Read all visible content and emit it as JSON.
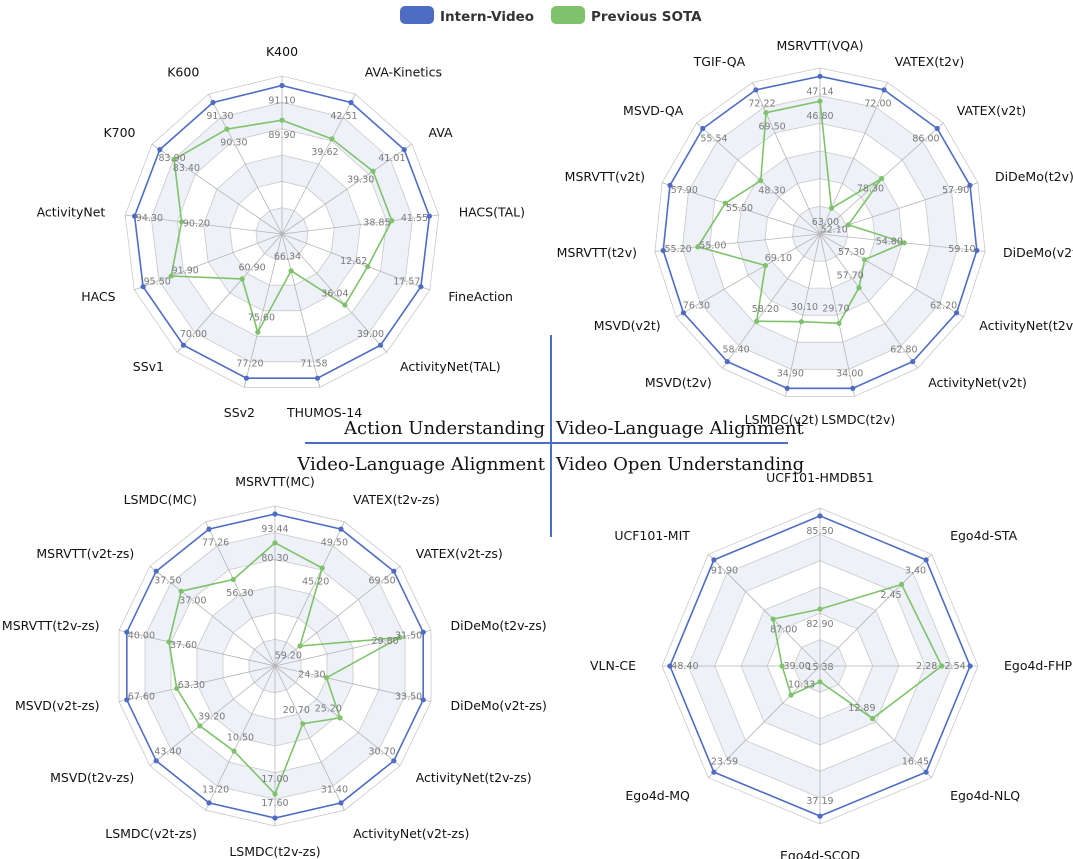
{
  "legend": {
    "items": [
      {
        "label": "Intern-Video",
        "color": "#4f6cc4"
      },
      {
        "label": "Previous SOTA",
        "color": "#7ec36b"
      }
    ]
  },
  "divider": {
    "top_left": "Action Understanding",
    "top_right": "Video-Language Alignment",
    "bottom_left": "Video-Language Alignment",
    "bottom_right": "Video Open Understanding",
    "color": "#4a6fc0"
  },
  "colors": {
    "series_a": "#4f6cc4",
    "series_b": "#7ec36b",
    "grid": "#c9c9c9",
    "band": "#eef1f8"
  },
  "chart_data": [
    {
      "type": "radar",
      "categories": [
        "K400",
        "AVA-Kinetics",
        "AVA",
        "HACS(TAL)",
        "FineAction",
        "ActivityNet(TAL)",
        "THUMOS-14",
        "SSv2",
        "SSv1",
        "HACS",
        "ActivityNet",
        "K700",
        "K600"
      ],
      "series": [
        {
          "name": "Intern-Video",
          "labels": [
            "91.10",
            "42.51",
            "41.01",
            "41.55",
            "17.57",
            "39.00",
            "71.58",
            "77.20",
            "70.00",
            "95.50",
            "94.30",
            "83.90",
            "91.30"
          ],
          "r": [
            0.94,
            0.94,
            0.94,
            0.94,
            0.94,
            0.94,
            0.94,
            0.94,
            0.94,
            0.94,
            0.94,
            0.94,
            0.94
          ]
        },
        {
          "name": "Previous SOTA",
          "labels": [
            "89.90",
            "39.62",
            "39.30",
            "38.85",
            "12.62",
            "36.04",
            "66.34",
            "75.60",
            "60.90",
            "91.90",
            "90.20",
            "83.40",
            "90.30"
          ],
          "r": [
            0.72,
            0.68,
            0.7,
            0.7,
            0.58,
            0.6,
            0.24,
            0.64,
            0.38,
            0.75,
            0.64,
            0.83,
            0.75
          ]
        }
      ]
    },
    {
      "type": "radar",
      "categories": [
        "MSRVTT(VQA)",
        "VATEX(t2v)",
        "VATEX(v2t)",
        "DiDeMo(t2v)",
        "DiDeMo(v2t)",
        "ActivityNet(t2v)",
        "ActivityNet(v2t)",
        "LSMDC(t2v)",
        "LSMDC(v2t)",
        "MSVD(t2v)",
        "MSVD(v2t)",
        "MSRVTT(t2v)",
        "MSRVTT(v2t)",
        "MSVD-QA",
        "TGIF-QA"
      ],
      "series": [
        {
          "name": "Intern-Video",
          "labels": [
            "47.14",
            "72.00",
            "86.00",
            "57.90",
            "59.10",
            "62.20",
            "62.80",
            "34.00",
            "34.90",
            "58.40",
            "76.30",
            "55.20",
            "57.90",
            "55.54",
            "72.22"
          ],
          "r": [
            0.95,
            0.95,
            0.95,
            0.95,
            0.95,
            0.95,
            0.95,
            0.95,
            0.95,
            0.95,
            0.95,
            0.95,
            0.95,
            0.95,
            0.95
          ]
        },
        {
          "name": "Previous SOTA",
          "labels": [
            "46.80",
            "63.00",
            "78.30",
            "52.10",
            "54.80",
            "57.30",
            "57.70",
            "29.70",
            "30.10",
            "58.20",
            "69.10",
            "55.00",
            "55.50",
            "48.30",
            "69.50"
          ],
          "r": [
            0.8,
            0.17,
            0.5,
            0.18,
            0.51,
            0.31,
            0.4,
            0.55,
            0.54,
            0.65,
            0.38,
            0.74,
            0.6,
            0.48,
            0.8
          ]
        }
      ]
    },
    {
      "type": "radar",
      "categories": [
        "MSRVTT(MC)",
        "VATEX(t2v-zs)",
        "VATEX(v2t-zs)",
        "DiDeMo(t2v-zs)",
        "DiDeMo(v2t-zs)",
        "ActivityNet(t2v-zs)",
        "ActivityNet(v2t-zs)",
        "LSMDC(t2v-zs)",
        "LSMDC(v2t-zs)",
        "MSVD(t2v-zs)",
        "MSVD(v2t-zs)",
        "MSRVTT(t2v-zs)",
        "MSRVTT(v2t-zs)",
        "LSMDC(MC)"
      ],
      "series": [
        {
          "name": "Intern-Video",
          "labels": [
            "93.44",
            "49.50",
            "69.50",
            "31.50",
            "33.50",
            "30.70",
            "31.40",
            "17.60",
            "13.20",
            "43.40",
            "67.60",
            "40.00",
            "37.50",
            "77.26"
          ],
          "r": [
            0.95,
            0.95,
            0.95,
            0.95,
            0.95,
            0.95,
            0.95,
            0.95,
            0.95,
            0.95,
            0.95,
            0.95,
            0.95,
            0.95
          ]
        },
        {
          "name": "Previous SOTA",
          "labels": [
            "80.30",
            "45.20",
            "59.20",
            "29.80",
            "24.30",
            "25.20",
            "20.70",
            "17.00",
            "10.50",
            "39.20",
            "63.30",
            "37.60",
            "37.00",
            "56.30"
          ],
          "r": [
            0.77,
            0.68,
            0.2,
            0.8,
            0.33,
            0.52,
            0.4,
            0.8,
            0.59,
            0.6,
            0.63,
            0.68,
            0.75,
            0.6
          ]
        }
      ]
    },
    {
      "type": "radar",
      "categories": [
        "UCF101-HMDB51",
        "Ego4d-STA",
        "Ego4d-FHP",
        "Ego4d-NLQ",
        "Ego4d-SCOD",
        "Ego4d-MQ",
        "VLN-CE",
        "UCF101-MIT"
      ],
      "series": [
        {
          "name": "Intern-Video",
          "labels": [
            "85.50",
            "3.40",
            "2.54",
            "16.45",
            "37.19",
            "23.59",
            "48.40",
            "91.90"
          ],
          "r": [
            0.95,
            0.95,
            0.95,
            0.95,
            0.95,
            0.95,
            0.95,
            0.95
          ]
        },
        {
          "name": "Previous SOTA",
          "labels": [
            "82.90",
            "2.45",
            "2.28",
            "12.89",
            "15.38",
            "10.33",
            "39.00",
            "87.00"
          ],
          "r": [
            0.36,
            0.73,
            0.77,
            0.47,
            0.1,
            0.26,
            0.24,
            0.42
          ]
        }
      ]
    }
  ]
}
